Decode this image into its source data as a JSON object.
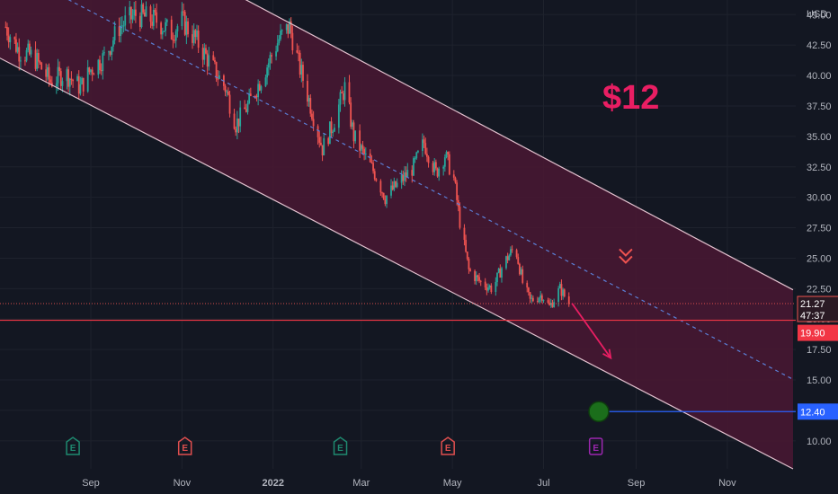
{
  "currency": "USD",
  "annotation_price": "$12",
  "price_tags": {
    "last": "21.27",
    "countdown": "47:37",
    "support": "19.90",
    "target": "12.40"
  },
  "colors": {
    "background": "#131722",
    "channel_fill": "#4a1733",
    "channel_line": "#e3c2cf",
    "midline": "#5b7fd6",
    "candle_up": "#26a69a",
    "candle_down": "#ef5350",
    "support_line": "#f23645",
    "target_line": "#2962ff",
    "annotation": "#e91e63",
    "earnings_green": "#1f8a70",
    "earnings_red": "#e04f4f",
    "dividend_purple": "#9c27b0",
    "target_marker": "#1b6e1b"
  },
  "chart_data": {
    "type": "candlestick",
    "ylabel": "USD",
    "yticks": [
      10.0,
      12.5,
      15.0,
      17.5,
      20.0,
      22.5,
      25.0,
      27.5,
      30.0,
      32.5,
      35.0,
      37.5,
      40.0,
      42.5,
      45.0
    ],
    "ylim": [
      7.7,
      46.2
    ],
    "xticks": [
      {
        "label": "Sep",
        "date": "2021-09-01"
      },
      {
        "label": "Nov",
        "date": "2021-11-01"
      },
      {
        "label": "2022",
        "date": "2022-01-01"
      },
      {
        "label": "Mar",
        "date": "2022-03-01"
      },
      {
        "label": "May",
        "date": "2022-05-01"
      },
      {
        "label": "Jul",
        "date": "2022-07-01"
      },
      {
        "label": "Sep",
        "date": "2022-09-01"
      },
      {
        "label": "Nov",
        "date": "2022-11-01"
      }
    ],
    "price_path": [
      [
        "2021-07-06",
        44.0
      ],
      [
        "2021-07-15",
        42.0
      ],
      [
        "2021-07-25",
        41.5
      ],
      [
        "2021-08-05",
        39.5
      ],
      [
        "2021-08-15",
        40.2
      ],
      [
        "2021-08-25",
        39.0
      ],
      [
        "2021-09-01",
        40.5
      ],
      [
        "2021-09-10",
        41.5
      ],
      [
        "2021-09-20",
        44.0
      ],
      [
        "2021-10-01",
        45.0
      ],
      [
        "2021-10-15",
        44.5
      ],
      [
        "2021-10-25",
        43.5
      ],
      [
        "2021-11-01",
        44.5
      ],
      [
        "2021-11-10",
        43.0
      ],
      [
        "2021-11-20",
        41.0
      ],
      [
        "2021-11-30",
        39.0
      ],
      [
        "2021-12-07",
        36.0
      ],
      [
        "2021-12-15",
        37.5
      ],
      [
        "2021-12-25",
        40.0
      ],
      [
        "2022-01-05",
        43.0
      ],
      [
        "2022-01-12",
        44.0
      ],
      [
        "2022-01-18",
        41.0
      ],
      [
        "2022-01-25",
        38.0
      ],
      [
        "2022-02-03",
        34.0
      ],
      [
        "2022-02-10",
        36.0
      ],
      [
        "2022-02-18",
        39.0
      ],
      [
        "2022-02-24",
        35.0
      ],
      [
        "2022-03-05",
        33.0
      ],
      [
        "2022-03-10",
        32.0
      ],
      [
        "2022-03-17",
        30.0
      ],
      [
        "2022-03-25",
        31.0
      ],
      [
        "2022-04-05",
        32.5
      ],
      [
        "2022-04-12",
        34.5
      ],
      [
        "2022-04-20",
        32.0
      ],
      [
        "2022-04-26",
        33.5
      ],
      [
        "2022-05-02",
        31.5
      ],
      [
        "2022-05-06",
        28.0
      ],
      [
        "2022-05-12",
        24.0
      ],
      [
        "2022-05-20",
        23.0
      ],
      [
        "2022-05-28",
        22.5
      ],
      [
        "2022-06-04",
        24.5
      ],
      [
        "2022-06-12",
        26.0
      ],
      [
        "2022-06-17",
        23.0
      ],
      [
        "2022-06-22",
        21.5
      ],
      [
        "2022-06-30",
        22.0
      ],
      [
        "2022-07-05",
        21.0
      ],
      [
        "2022-07-12",
        22.5
      ],
      [
        "2022-07-18",
        21.3
      ]
    ],
    "channel": {
      "upper": [
        [
          "2021-07-01",
          57.0
        ],
        [
          "2022-12-15",
          22.4
        ]
      ],
      "lower": [
        [
          "2021-07-01",
          41.5
        ],
        [
          "2022-12-15",
          7.7
        ]
      ],
      "mid": [
        [
          "2021-07-01",
          49.25
        ],
        [
          "2022-12-15",
          15.05
        ]
      ]
    },
    "projection_arrow": [
      [
        "2022-07-20",
        21.3
      ],
      [
        "2022-08-15",
        16.8
      ]
    ],
    "support_level": 19.9,
    "last_price": 21.27,
    "target_level": 12.4,
    "target_date": "2022-08-07",
    "target_line_end": "2022-11-18",
    "sell_marker": {
      "date": "2022-08-25",
      "price": 25.0
    },
    "event_markers": [
      {
        "label": "E",
        "date": "2021-08-20",
        "kind": "earnings-green"
      },
      {
        "label": "E",
        "date": "2021-11-03",
        "kind": "earnings-red"
      },
      {
        "label": "E",
        "date": "2022-02-15",
        "kind": "earnings-green"
      },
      {
        "label": "E",
        "date": "2022-04-28",
        "kind": "earnings-red"
      },
      {
        "label": "E",
        "date": "2022-08-05",
        "kind": "earnings-purple"
      }
    ]
  }
}
